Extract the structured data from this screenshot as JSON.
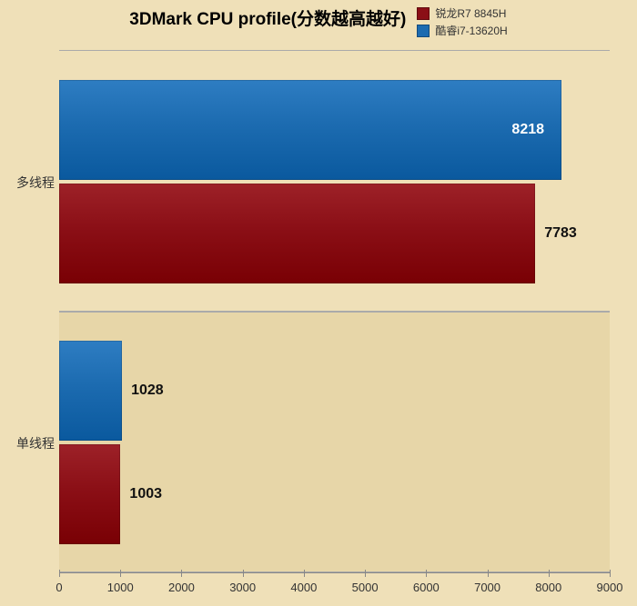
{
  "chart": {
    "type": "grouped-horizontal-bar",
    "title": "3DMark CPU profile(分数越高越好)",
    "title_fontsize": 19,
    "background_color": "#efe0b8",
    "plot_bg_1": "#efe0b8",
    "plot_bg_2": "#e7d6a8",
    "grid_color": "#aaaaaa",
    "axis_color": "#888888",
    "label_fontsize": 14,
    "tick_fontsize": 13,
    "value_fontsize": 16,
    "x": {
      "min": 0,
      "max": 9000,
      "step": 1000,
      "ticks": [
        "0",
        "1000",
        "2000",
        "3000",
        "4000",
        "5000",
        "6000",
        "7000",
        "8000",
        "9000"
      ]
    },
    "legend": {
      "fontsize": 12,
      "items": [
        {
          "color": "#8b0f16",
          "label": "锐龙R7 8845H"
        },
        {
          "color": "#1c6bb0",
          "label": "酷睿i7-13620H"
        }
      ]
    },
    "categories": [
      {
        "label": "多线程",
        "bars": [
          {
            "series": 1,
            "value": 8218,
            "value_text": "8218"
          },
          {
            "series": 0,
            "value": 7783,
            "value_text": "7783"
          }
        ]
      },
      {
        "label": "单线程",
        "bars": [
          {
            "series": 1,
            "value": 1028,
            "value_text": "1028"
          },
          {
            "series": 0,
            "value": 1003,
            "value_text": "1003"
          }
        ]
      }
    ]
  }
}
